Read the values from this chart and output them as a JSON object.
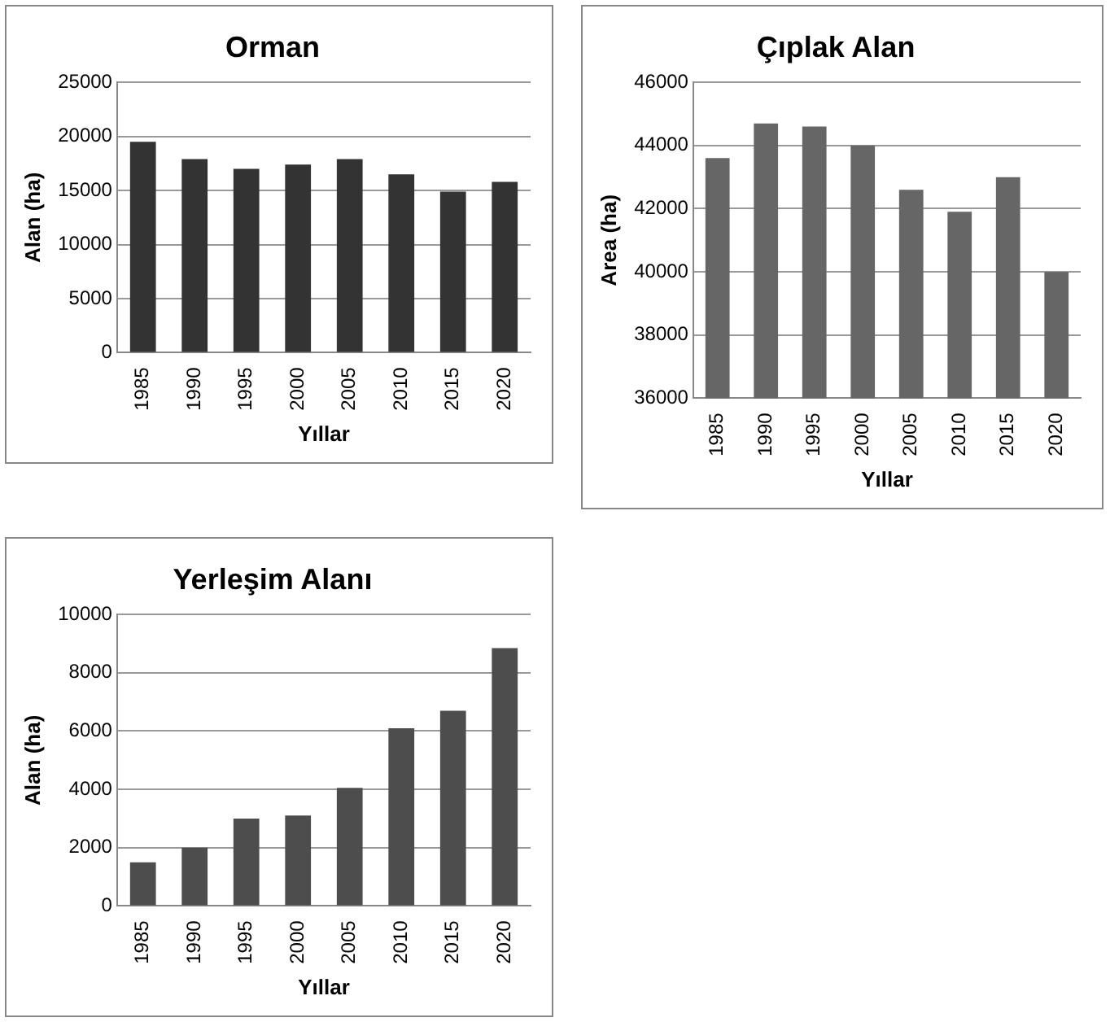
{
  "chart_data": [
    {
      "type": "bar",
      "title": "Orman",
      "xlabel": "Yıllar",
      "ylabel": "Alan (ha)",
      "categories": [
        "1985",
        "1990",
        "1995",
        "2000",
        "2005",
        "2010",
        "2015",
        "2020"
      ],
      "values": [
        19500,
        17900,
        17000,
        17400,
        17900,
        16500,
        14900,
        15800
      ],
      "color": "#333333",
      "ylim": [
        0,
        25000
      ],
      "yticks": [
        0,
        5000,
        10000,
        15000,
        20000,
        25000
      ],
      "grid": "y",
      "legend": false
    },
    {
      "type": "bar",
      "title": "Çıplak Alan",
      "xlabel": "Yıllar",
      "ylabel": "Area (ha)",
      "categories": [
        "1985",
        "1990",
        "1995",
        "2000",
        "2005",
        "2010",
        "2015",
        "2020"
      ],
      "values": [
        43600,
        44700,
        44600,
        44000,
        42600,
        41900,
        43000,
        40000
      ],
      "color": "#666666",
      "ylim": [
        36000,
        46000
      ],
      "yticks": [
        36000,
        38000,
        40000,
        42000,
        44000,
        46000
      ],
      "grid": "y",
      "legend": false
    },
    {
      "type": "bar",
      "title": "Yerleşim Alanı",
      "xlabel": "Yıllar",
      "ylabel": "Alan (ha)",
      "categories": [
        "1985",
        "1990",
        "1995",
        "2000",
        "2005",
        "2010",
        "2015",
        "2020"
      ],
      "values": [
        1500,
        2000,
        3000,
        3100,
        4050,
        6100,
        6700,
        8850
      ],
      "color": "#4d4d4d",
      "ylim": [
        0,
        10000
      ],
      "yticks": [
        0,
        2000,
        4000,
        6000,
        8000,
        10000
      ],
      "grid": "y",
      "legend": false
    }
  ]
}
